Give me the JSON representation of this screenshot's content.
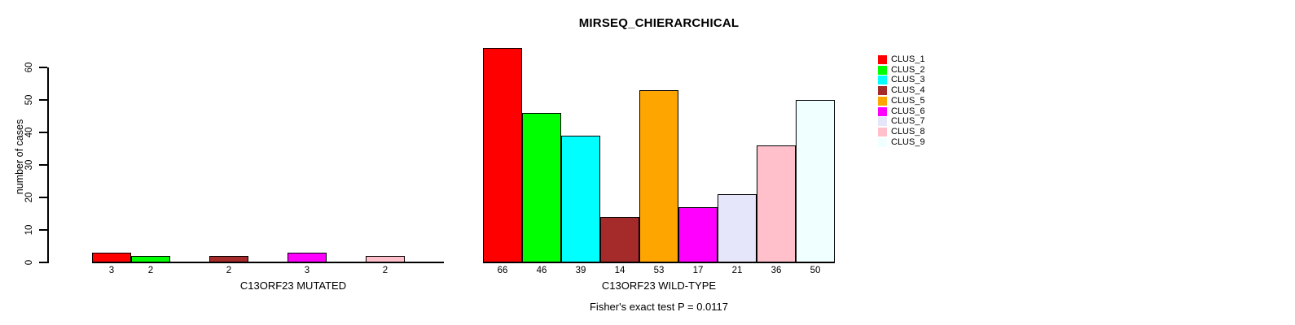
{
  "title": "MIRSEQ_CHIERARCHICAL",
  "footer": "Fisher's exact test P = 0.0117",
  "ylabel": "number of cases",
  "legend": {
    "items": [
      {
        "label": "CLUS_1",
        "color": "#FF0000"
      },
      {
        "label": "CLUS_2",
        "color": "#00FF00"
      },
      {
        "label": "CLUS_3",
        "color": "#00FFFF"
      },
      {
        "label": "CLUS_4",
        "color": "#A52A2A"
      },
      {
        "label": "CLUS_5",
        "color": "#FFA500"
      },
      {
        "label": "CLUS_6",
        "color": "#FF00FF"
      },
      {
        "label": "CLUS_7",
        "color": "#E6E6FA"
      },
      {
        "label": "CLUS_8",
        "color": "#FFC0CB"
      },
      {
        "label": "CLUS_9",
        "color": "#F0FFFF"
      }
    ]
  },
  "chart_data": [
    {
      "type": "bar",
      "title": "MIRSEQ_CHIERARCHICAL",
      "xlabel": "C13ORF23 MUTATED",
      "ylabel": "number of cases",
      "categories": [
        "CLUS_1",
        "CLUS_2",
        "CLUS_3",
        "CLUS_4",
        "CLUS_5",
        "CLUS_6",
        "CLUS_7",
        "CLUS_8",
        "CLUS_9"
      ],
      "values": [
        3,
        2,
        0,
        2,
        0,
        3,
        0,
        2,
        0
      ],
      "bar_labels": [
        "3",
        "2",
        "",
        "2",
        "",
        "3",
        "",
        "2",
        ""
      ],
      "ylim": [
        0,
        60
      ],
      "yticks": [
        0,
        10,
        20,
        30,
        40,
        50,
        60
      ],
      "grid": false,
      "legend_position": "right"
    },
    {
      "type": "bar",
      "title": "MIRSEQ_CHIERARCHICAL",
      "xlabel": "C13ORF23 WILD-TYPE",
      "categories": [
        "CLUS_1",
        "CLUS_2",
        "CLUS_3",
        "CLUS_4",
        "CLUS_5",
        "CLUS_6",
        "CLUS_7",
        "CLUS_8",
        "CLUS_9"
      ],
      "values": [
        66,
        46,
        39,
        14,
        53,
        17,
        21,
        36,
        50
      ],
      "bar_labels": [
        "66",
        "46",
        "39",
        "14",
        "53",
        "17",
        "21",
        "36",
        "50"
      ],
      "ylim": [
        0,
        60
      ],
      "yticks": [
        0,
        10,
        20,
        30,
        40,
        50,
        60
      ],
      "grid": false,
      "annotation": "Fisher's exact test P = 0.0117"
    }
  ]
}
